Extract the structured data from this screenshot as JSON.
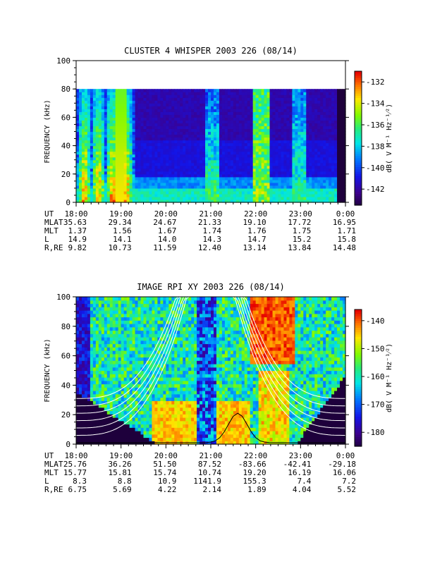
{
  "chart_data": [
    {
      "type": "heatmap",
      "title": "CLUSTER 4 WHISPER 2003 226 (08/14)",
      "ylabel": "FREQUENCY (kHz)",
      "ylim": [
        0,
        100
      ],
      "yticks": [
        "0",
        "20",
        "40",
        "60",
        "80",
        "100"
      ],
      "xticks": [
        "18:00",
        "19:00",
        "20:00",
        "21:00",
        "22:00",
        "23:00",
        "0:00"
      ],
      "data_fmax_khz": 80,
      "colorbar": {
        "label": "dB( V M⁻¹ Hz⁻¹⁄²)",
        "range": [
          -143.5,
          -131
        ],
        "ticks": [
          "-132",
          "-134",
          "-136",
          "-138",
          "-140",
          "-142"
        ]
      },
      "ephemeris": {
        "labels": [
          "UT",
          "MLAT",
          "MLT",
          "L",
          "R,RE"
        ],
        "rows": [
          [
            "35.63",
            "29.34",
            "24.67",
            "21.33",
            "19.10",
            "17.72",
            "16.95"
          ],
          [
            "1.37",
            "1.56",
            "1.67",
            "1.74",
            "1.76",
            "1.75",
            "1.71"
          ],
          [
            "14.9",
            "14.1",
            "14.0",
            "14.3",
            "14.7",
            "15.2",
            "15.8"
          ],
          [
            "9.82",
            "10.73",
            "11.59",
            "12.40",
            "13.14",
            "13.84",
            "14.48"
          ]
        ]
      }
    },
    {
      "type": "heatmap",
      "title": "IMAGE RPI XY 2003 226 (08/14)",
      "ylabel": "FREQUENCY (kHz)",
      "ylim": [
        0,
        100
      ],
      "yticks": [
        "0",
        "20",
        "40",
        "60",
        "80",
        "100"
      ],
      "xticks": [
        "18:00",
        "19:00",
        "20:00",
        "21:00",
        "22:00",
        "23:00",
        "0:00"
      ],
      "colorbar": {
        "label": "dB( V M⁻¹ Hz⁻¹⁄²)",
        "range": [
          -185,
          -136
        ],
        "ticks": [
          "-140",
          "-150",
          "-160",
          "-170",
          "-180"
        ]
      },
      "ephemeris": {
        "labels": [
          "UT",
          "MLAT",
          "MLT",
          "L",
          "R,RE"
        ],
        "rows": [
          [
            "25.76",
            "36.26",
            "51.50",
            "87.52",
            "-83.66",
            "-42.41",
            "-29.18"
          ],
          [
            "15.77",
            "15.81",
            "15.74",
            "10.74",
            "19.20",
            "16.19",
            "16.06"
          ],
          [
            "8.3",
            "8.8",
            "10.9",
            "1141.9",
            "155.3",
            "7.4",
            "7.2"
          ],
          [
            "6.75",
            "5.69",
            "4.22",
            "2.14",
            "1.89",
            "4.04",
            "5.52"
          ]
        ]
      }
    }
  ]
}
